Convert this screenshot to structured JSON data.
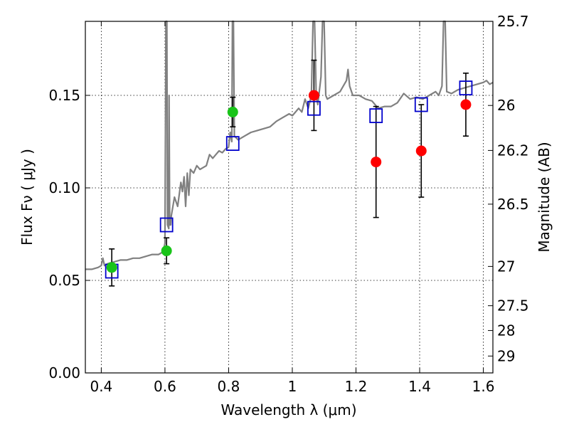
{
  "chart_data": {
    "type": "scatter",
    "x_axis": {
      "label": "Wavelength  λ (μm)",
      "range": [
        0.35,
        1.63
      ],
      "ticks": [
        0.4,
        0.6,
        0.8,
        1.0,
        1.2,
        1.4,
        1.6
      ],
      "tick_labels": [
        "0.4",
        "0.6",
        "0.8",
        "1",
        "1.2",
        "1.4",
        "1.6"
      ]
    },
    "y_axis": {
      "label": "Flux  Fν  ( μJy )",
      "range": [
        0.0,
        0.19
      ],
      "ticks": [
        0.0,
        0.05,
        0.1,
        0.15
      ],
      "tick_labels": [
        "0.00",
        "0.05",
        "0.10",
        "0.15"
      ]
    },
    "y2_axis": {
      "label": "Magnitude (AB)",
      "tick_labels": [
        "25.7",
        "26",
        "26.2",
        "26.5",
        "27",
        "27.5",
        "28",
        "29"
      ]
    },
    "grid": true,
    "series": [
      {
        "marker": "line",
        "color": "#808080",
        "points": [
          [
            0.35,
            0.056
          ],
          [
            0.37,
            0.056
          ],
          [
            0.39,
            0.057
          ],
          [
            0.4,
            0.058
          ],
          [
            0.405,
            0.062
          ],
          [
            0.41,
            0.058
          ],
          [
            0.42,
            0.059
          ],
          [
            0.44,
            0.06
          ],
          [
            0.46,
            0.061
          ],
          [
            0.48,
            0.061
          ],
          [
            0.5,
            0.062
          ],
          [
            0.52,
            0.062
          ],
          [
            0.54,
            0.063
          ],
          [
            0.56,
            0.064
          ],
          [
            0.58,
            0.064
          ],
          [
            0.59,
            0.065
          ],
          [
            0.595,
            0.066
          ],
          [
            0.6,
            0.07
          ],
          [
            0.603,
            0.19
          ],
          [
            0.606,
            0.19
          ],
          [
            0.608,
            0.08
          ],
          [
            0.612,
            0.078
          ],
          [
            0.613,
            0.15
          ],
          [
            0.615,
            0.08
          ],
          [
            0.618,
            0.08
          ],
          [
            0.62,
            0.085
          ],
          [
            0.63,
            0.095
          ],
          [
            0.64,
            0.09
          ],
          [
            0.65,
            0.103
          ],
          [
            0.655,
            0.098
          ],
          [
            0.66,
            0.106
          ],
          [
            0.665,
            0.09
          ],
          [
            0.67,
            0.108
          ],
          [
            0.675,
            0.096
          ],
          [
            0.68,
            0.11
          ],
          [
            0.69,
            0.108
          ],
          [
            0.7,
            0.112
          ],
          [
            0.71,
            0.11
          ],
          [
            0.72,
            0.111
          ],
          [
            0.73,
            0.112
          ],
          [
            0.74,
            0.118
          ],
          [
            0.75,
            0.116
          ],
          [
            0.76,
            0.118
          ],
          [
            0.77,
            0.12
          ],
          [
            0.78,
            0.119
          ],
          [
            0.79,
            0.121
          ],
          [
            0.8,
            0.122
          ],
          [
            0.805,
            0.13
          ],
          [
            0.81,
            0.125
          ],
          [
            0.812,
            0.19
          ],
          [
            0.815,
            0.19
          ],
          [
            0.818,
            0.128
          ],
          [
            0.83,
            0.126
          ],
          [
            0.85,
            0.128
          ],
          [
            0.87,
            0.13
          ],
          [
            0.89,
            0.131
          ],
          [
            0.91,
            0.132
          ],
          [
            0.93,
            0.133
          ],
          [
            0.95,
            0.136
          ],
          [
            0.97,
            0.138
          ],
          [
            0.99,
            0.14
          ],
          [
            1.0,
            0.139
          ],
          [
            1.01,
            0.141
          ],
          [
            1.02,
            0.143
          ],
          [
            1.03,
            0.141
          ],
          [
            1.04,
            0.148
          ],
          [
            1.05,
            0.143
          ],
          [
            1.06,
            0.15
          ],
          [
            1.065,
            0.19
          ],
          [
            1.07,
            0.19
          ],
          [
            1.075,
            0.15
          ],
          [
            1.08,
            0.145
          ],
          [
            1.09,
            0.16
          ],
          [
            1.095,
            0.19
          ],
          [
            1.1,
            0.19
          ],
          [
            1.105,
            0.15
          ],
          [
            1.11,
            0.148
          ],
          [
            1.13,
            0.15
          ],
          [
            1.15,
            0.152
          ],
          [
            1.17,
            0.158
          ],
          [
            1.175,
            0.164
          ],
          [
            1.18,
            0.155
          ],
          [
            1.19,
            0.15
          ],
          [
            1.21,
            0.15
          ],
          [
            1.23,
            0.148
          ],
          [
            1.25,
            0.147
          ],
          [
            1.27,
            0.143
          ],
          [
            1.29,
            0.144
          ],
          [
            1.31,
            0.144
          ],
          [
            1.33,
            0.146
          ],
          [
            1.35,
            0.151
          ],
          [
            1.37,
            0.148
          ],
          [
            1.39,
            0.149
          ],
          [
            1.41,
            0.148
          ],
          [
            1.43,
            0.15
          ],
          [
            1.45,
            0.152
          ],
          [
            1.46,
            0.15
          ],
          [
            1.47,
            0.155
          ],
          [
            1.475,
            0.19
          ],
          [
            1.48,
            0.19
          ],
          [
            1.485,
            0.152
          ],
          [
            1.5,
            0.151
          ],
          [
            1.52,
            0.153
          ],
          [
            1.54,
            0.154
          ],
          [
            1.56,
            0.155
          ],
          [
            1.58,
            0.156
          ],
          [
            1.6,
            0.157
          ],
          [
            1.61,
            0.158
          ],
          [
            1.62,
            0.156
          ],
          [
            1.63,
            0.157
          ]
        ]
      },
      {
        "marker": "square",
        "color": "#0000cc",
        "points": [
          [
            0.433,
            0.055
          ],
          [
            0.605,
            0.08
          ],
          [
            0.813,
            0.124
          ],
          [
            1.068,
            0.143
          ],
          [
            1.263,
            0.139
          ],
          [
            1.405,
            0.145
          ],
          [
            1.545,
            0.154
          ]
        ]
      },
      {
        "marker": "circle",
        "color": "#19c419",
        "points": [
          [
            0.433,
            0.057,
            0.01
          ],
          [
            0.605,
            0.066,
            0.007
          ],
          [
            0.813,
            0.141,
            0.008
          ]
        ]
      },
      {
        "marker": "circle",
        "color": "#ff0000",
        "points": [
          [
            1.068,
            0.15,
            0.019
          ],
          [
            1.263,
            0.114,
            0.03
          ],
          [
            1.405,
            0.12,
            0.025
          ],
          [
            1.545,
            0.145,
            0.017
          ]
        ]
      }
    ]
  }
}
